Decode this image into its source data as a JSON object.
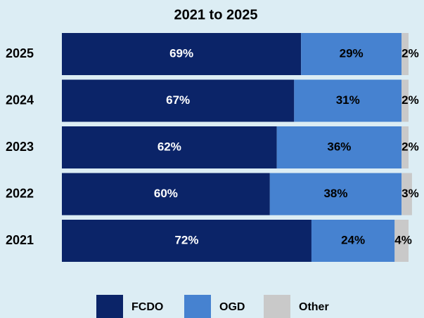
{
  "chart_data": {
    "type": "stacked_barh",
    "title": "2021 to 2025",
    "categories": [
      "2025",
      "2024",
      "2023",
      "2022",
      "2021"
    ],
    "series": [
      {
        "name": "FCDO",
        "color": "#0b2468",
        "label_color": "#ffffff",
        "values": [
          69,
          67,
          62,
          60,
          72
        ],
        "value_labels": [
          "69%",
          "67%",
          "62%",
          "60%",
          "72%"
        ]
      },
      {
        "name": "OGD",
        "color": "#4682d0",
        "label_color": "#000000",
        "values": [
          29,
          31,
          36,
          38,
          24
        ],
        "value_labels": [
          "29%",
          "31%",
          "36%",
          "38%",
          "24%"
        ]
      },
      {
        "name": "Other",
        "color": "#c9c9c9",
        "label_color": "#000000",
        "values": [
          2,
          2,
          2,
          3,
          4
        ],
        "value_labels": [
          "2%",
          "2%",
          "2%",
          "3%",
          "4%"
        ]
      }
    ],
    "xlim": [
      0,
      100
    ],
    "legend": "bottom"
  }
}
